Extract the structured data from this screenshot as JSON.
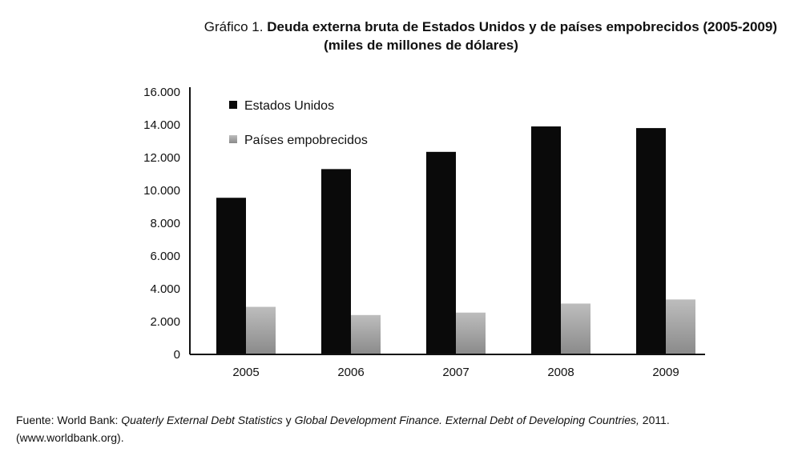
{
  "title": {
    "prefix": "Gráfico 1.",
    "main": "Deuda externa bruta de Estados Unidos y de países empobrecidos (2005-2009)",
    "subtitle": "(miles de millones de dólares)"
  },
  "source": {
    "lead": "Fuente: World Bank: ",
    "pub1": "Quaterly External Debt Statistics",
    "conj": " y ",
    "pub2": "Global Development Finance. External Debt of Developing Countries,",
    "year": " 2011.",
    "url": "(www.worldbank.org)."
  },
  "chart_data": {
    "type": "bar",
    "title": "Deuda externa bruta de Estados Unidos y de países empobrecidos (2005-2009)",
    "categories": [
      "2005",
      "2006",
      "2007",
      "2008",
      "2009"
    ],
    "series": [
      {
        "name": "Estados Unidos",
        "values": [
          9550,
          11300,
          12350,
          13900,
          13800
        ],
        "color": "#0a0a0a"
      },
      {
        "name": "Países empobrecidos",
        "values": [
          2900,
          2400,
          2550,
          3100,
          3350
        ],
        "color": "#a8a8a8"
      }
    ],
    "yticks": [
      "0",
      "2.000",
      "4.000",
      "6.000",
      "8.000",
      "10.000",
      "12.000",
      "14.000",
      "16.000"
    ],
    "ylim": [
      0,
      16000
    ],
    "legend_position": "top-left",
    "grid": false
  }
}
